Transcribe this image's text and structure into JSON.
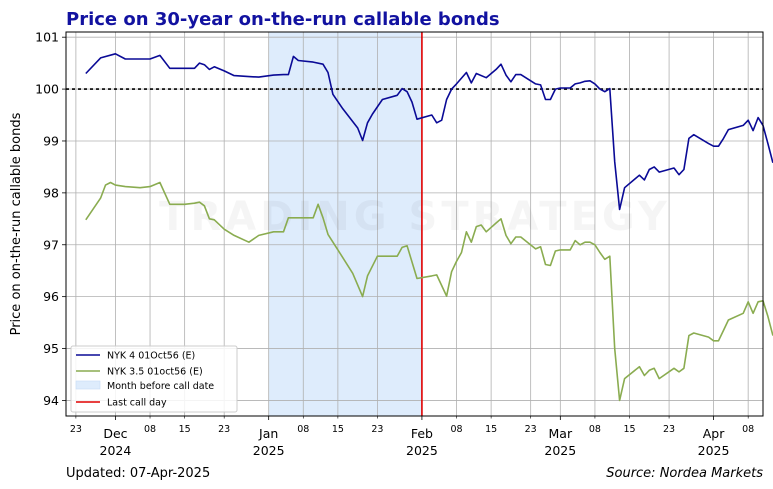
{
  "chart_data": {
    "type": "line",
    "title": "Price on 30-year on-the-run callable bonds",
    "ylabel": "Price on on-the-run callable bonds",
    "xlabel": "",
    "x_range": [
      "2024-11-21",
      "2025-04-11"
    ],
    "ylim": [
      93.7,
      101.1
    ],
    "grid": true,
    "legend_position": "lower-left",
    "y_ticks": [
      94,
      95,
      96,
      97,
      98,
      99,
      100,
      101
    ],
    "x_major_ticks": [
      {
        "date": "2024-12-01",
        "line1": "Dec",
        "line2": "2024"
      },
      {
        "date": "2025-01-01",
        "line1": "Jan",
        "line2": "2025"
      },
      {
        "date": "2025-02-01",
        "line1": "Feb",
        "line2": "2025"
      },
      {
        "date": "2025-03-01",
        "line1": "Mar",
        "line2": "2025"
      },
      {
        "date": "2025-04-01",
        "line1": "Apr",
        "line2": "2025"
      }
    ],
    "x_minor_ticks": [
      {
        "date": "2024-11-23",
        "label": "23"
      },
      {
        "date": "2024-12-08",
        "label": "08"
      },
      {
        "date": "2024-12-15",
        "label": "15"
      },
      {
        "date": "2024-12-23",
        "label": "23"
      },
      {
        "date": "2025-01-08",
        "label": "08"
      },
      {
        "date": "2025-01-15",
        "label": "15"
      },
      {
        "date": "2025-01-23",
        "label": "23"
      },
      {
        "date": "2025-02-08",
        "label": "08"
      },
      {
        "date": "2025-02-15",
        "label": "15"
      },
      {
        "date": "2025-02-23",
        "label": "23"
      },
      {
        "date": "2025-03-08",
        "label": "08"
      },
      {
        "date": "2025-03-15",
        "label": "15"
      },
      {
        "date": "2025-03-23",
        "label": "23"
      },
      {
        "date": "2025-04-08",
        "label": "08"
      }
    ],
    "reference_line": {
      "y": 100,
      "style": "dotted",
      "color": "#000000"
    },
    "shaded_region": {
      "x_start": "2025-01-01",
      "x_end": "2025-02-01",
      "label": "Month before call date",
      "color": "#deecfc"
    },
    "vertical_line": {
      "x": "2025-02-01",
      "label": "Last call day",
      "color": "#e00000"
    },
    "series": [
      {
        "name": "NYK 4 01Oct56 (E)",
        "color": "#0a0a96",
        "points": [
          [
            "2024-11-25",
            100.3
          ],
          [
            "2024-11-28",
            100.6
          ],
          [
            "2024-12-01",
            100.68
          ],
          [
            "2024-12-03",
            100.58
          ],
          [
            "2024-12-06",
            100.58
          ],
          [
            "2024-12-08",
            100.58
          ],
          [
            "2024-12-10",
            100.65
          ],
          [
            "2024-12-12",
            100.4
          ],
          [
            "2024-12-15",
            100.4
          ],
          [
            "2024-12-17",
            100.4
          ],
          [
            "2024-12-18",
            100.5
          ],
          [
            "2024-12-19",
            100.47
          ],
          [
            "2024-12-20",
            100.38
          ],
          [
            "2024-12-21",
            100.43
          ],
          [
            "2024-12-23",
            100.35
          ],
          [
            "2024-12-25",
            100.26
          ],
          [
            "2024-12-28",
            100.24
          ],
          [
            "2024-12-30",
            100.23
          ],
          [
            "2025-01-02",
            100.27
          ],
          [
            "2025-01-04",
            100.28
          ],
          [
            "2025-01-05",
            100.28
          ],
          [
            "2025-01-06",
            100.63
          ],
          [
            "2025-01-07",
            100.55
          ],
          [
            "2025-01-10",
            100.52
          ],
          [
            "2025-01-12",
            100.48
          ],
          [
            "2025-01-13",
            100.32
          ],
          [
            "2025-01-14",
            99.9
          ],
          [
            "2025-01-16",
            99.62
          ],
          [
            "2025-01-19",
            99.25
          ],
          [
            "2025-01-20",
            99.01
          ],
          [
            "2025-01-21",
            99.35
          ],
          [
            "2025-01-22",
            99.52
          ],
          [
            "2025-01-24",
            99.8
          ],
          [
            "2025-01-27",
            99.88
          ],
          [
            "2025-01-28",
            100.01
          ],
          [
            "2025-01-29",
            99.95
          ],
          [
            "2025-01-30",
            99.75
          ],
          [
            "2025-01-31",
            99.42
          ],
          [
            "2025-02-03",
            99.5
          ],
          [
            "2025-02-04",
            99.35
          ],
          [
            "2025-02-05",
            99.4
          ],
          [
            "2025-02-06",
            99.8
          ],
          [
            "2025-02-07",
            100.0
          ],
          [
            "2025-02-08",
            100.1
          ],
          [
            "2025-02-10",
            100.32
          ],
          [
            "2025-02-11",
            100.12
          ],
          [
            "2025-02-12",
            100.3
          ],
          [
            "2025-02-14",
            100.22
          ],
          [
            "2025-02-16",
            100.38
          ],
          [
            "2025-02-17",
            100.48
          ],
          [
            "2025-02-18",
            100.27
          ],
          [
            "2025-02-19",
            100.14
          ],
          [
            "2025-02-20",
            100.28
          ],
          [
            "2025-02-21",
            100.28
          ],
          [
            "2025-02-24",
            100.1
          ],
          [
            "2025-02-25",
            100.08
          ],
          [
            "2025-02-26",
            99.8
          ],
          [
            "2025-02-27",
            99.8
          ],
          [
            "2025-02-28",
            100.0
          ],
          [
            "2025-03-01",
            100.02
          ],
          [
            "2025-03-03",
            100.02
          ],
          [
            "2025-03-04",
            100.1
          ],
          [
            "2025-03-05",
            100.12
          ],
          [
            "2025-03-06",
            100.15
          ],
          [
            "2025-03-07",
            100.16
          ],
          [
            "2025-03-08",
            100.1
          ],
          [
            "2025-03-09",
            100.0
          ],
          [
            "2025-03-10",
            99.95
          ],
          [
            "2025-03-11",
            100.01
          ],
          [
            "2025-03-12",
            98.6
          ],
          [
            "2025-03-13",
            97.68
          ],
          [
            "2025-03-14",
            98.1
          ],
          [
            "2025-03-17",
            98.34
          ],
          [
            "2025-03-18",
            98.25
          ],
          [
            "2025-03-19",
            98.45
          ],
          [
            "2025-03-20",
            98.5
          ],
          [
            "2025-03-21",
            98.4
          ],
          [
            "2025-03-24",
            98.48
          ],
          [
            "2025-03-25",
            98.35
          ],
          [
            "2025-03-26",
            98.45
          ],
          [
            "2025-03-27",
            99.05
          ],
          [
            "2025-03-28",
            99.12
          ],
          [
            "2025-03-31",
            98.95
          ],
          [
            "2025-04-01",
            98.9
          ],
          [
            "2025-04-02",
            98.9
          ],
          [
            "2025-04-03",
            99.05
          ],
          [
            "2025-04-04",
            99.22
          ],
          [
            "2025-04-07",
            99.3
          ],
          [
            "2025-04-08",
            99.4
          ],
          [
            "2025-04-09",
            99.2
          ],
          [
            "2025-04-10",
            99.45
          ],
          [
            "2025-04-11",
            99.3
          ],
          [
            "2025-04-12",
            98.95
          ],
          [
            "2025-04-13",
            98.58
          ]
        ]
      },
      {
        "name": "NYK 3.5 01oct56 (E)",
        "color": "#8aac50",
        "points": [
          [
            "2024-11-25",
            97.48
          ],
          [
            "2024-11-28",
            97.9
          ],
          [
            "2024-11-29",
            98.15
          ],
          [
            "2024-11-30",
            98.2
          ],
          [
            "2024-12-01",
            98.15
          ],
          [
            "2024-12-03",
            98.12
          ],
          [
            "2024-12-06",
            98.1
          ],
          [
            "2024-12-08",
            98.12
          ],
          [
            "2024-12-10",
            98.2
          ],
          [
            "2024-12-12",
            97.78
          ],
          [
            "2024-12-15",
            97.78
          ],
          [
            "2024-12-17",
            97.8
          ],
          [
            "2024-12-18",
            97.82
          ],
          [
            "2024-12-19",
            97.75
          ],
          [
            "2024-12-20",
            97.5
          ],
          [
            "2024-12-21",
            97.48
          ],
          [
            "2024-12-23",
            97.3
          ],
          [
            "2024-12-25",
            97.18
          ],
          [
            "2024-12-28",
            97.05
          ],
          [
            "2024-12-30",
            97.18
          ],
          [
            "2025-01-02",
            97.25
          ],
          [
            "2025-01-04",
            97.25
          ],
          [
            "2025-01-05",
            97.52
          ],
          [
            "2025-01-06",
            97.52
          ],
          [
            "2025-01-07",
            97.52
          ],
          [
            "2025-01-10",
            97.52
          ],
          [
            "2025-01-11",
            97.78
          ],
          [
            "2025-01-12",
            97.52
          ],
          [
            "2025-01-13",
            97.2
          ],
          [
            "2025-01-15",
            96.9
          ],
          [
            "2025-01-18",
            96.45
          ],
          [
            "2025-01-20",
            96.0
          ],
          [
            "2025-01-21",
            96.4
          ],
          [
            "2025-01-23",
            96.78
          ],
          [
            "2025-01-25",
            96.78
          ],
          [
            "2025-01-27",
            96.78
          ],
          [
            "2025-01-28",
            96.95
          ],
          [
            "2025-01-29",
            96.98
          ],
          [
            "2025-01-31",
            96.35
          ],
          [
            "2025-02-03",
            96.4
          ],
          [
            "2025-02-04",
            96.42
          ],
          [
            "2025-02-06",
            96.01
          ],
          [
            "2025-02-07",
            96.48
          ],
          [
            "2025-02-08",
            96.68
          ],
          [
            "2025-02-09",
            96.85
          ],
          [
            "2025-02-10",
            97.25
          ],
          [
            "2025-02-11",
            97.05
          ],
          [
            "2025-02-12",
            97.35
          ],
          [
            "2025-02-13",
            97.38
          ],
          [
            "2025-02-14",
            97.25
          ],
          [
            "2025-02-16",
            97.42
          ],
          [
            "2025-02-17",
            97.5
          ],
          [
            "2025-02-18",
            97.18
          ],
          [
            "2025-02-19",
            97.02
          ],
          [
            "2025-02-20",
            97.15
          ],
          [
            "2025-02-21",
            97.15
          ],
          [
            "2025-02-24",
            96.92
          ],
          [
            "2025-02-25",
            96.96
          ],
          [
            "2025-02-26",
            96.62
          ],
          [
            "2025-02-27",
            96.6
          ],
          [
            "2025-02-28",
            96.88
          ],
          [
            "2025-03-01",
            96.9
          ],
          [
            "2025-03-03",
            96.9
          ],
          [
            "2025-03-04",
            97.08
          ],
          [
            "2025-03-05",
            97.0
          ],
          [
            "2025-03-06",
            97.05
          ],
          [
            "2025-03-07",
            97.05
          ],
          [
            "2025-03-08",
            97.0
          ],
          [
            "2025-03-09",
            96.85
          ],
          [
            "2025-03-10",
            96.72
          ],
          [
            "2025-03-11",
            96.78
          ],
          [
            "2025-03-12",
            95.0
          ],
          [
            "2025-03-13",
            94.0
          ],
          [
            "2025-03-14",
            94.42
          ],
          [
            "2025-03-17",
            94.65
          ],
          [
            "2025-03-18",
            94.48
          ],
          [
            "2025-03-19",
            94.58
          ],
          [
            "2025-03-20",
            94.62
          ],
          [
            "2025-03-21",
            94.42
          ],
          [
            "2025-03-24",
            94.62
          ],
          [
            "2025-03-25",
            94.55
          ],
          [
            "2025-03-26",
            94.62
          ],
          [
            "2025-03-27",
            95.25
          ],
          [
            "2025-03-28",
            95.3
          ],
          [
            "2025-03-31",
            95.22
          ],
          [
            "2025-04-01",
            95.15
          ],
          [
            "2025-04-02",
            95.15
          ],
          [
            "2025-04-03",
            95.35
          ],
          [
            "2025-04-04",
            95.55
          ],
          [
            "2025-04-07",
            95.68
          ],
          [
            "2025-04-08",
            95.9
          ],
          [
            "2025-04-09",
            95.68
          ],
          [
            "2025-04-10",
            95.9
          ],
          [
            "2025-04-11",
            95.92
          ],
          [
            "2025-04-12",
            95.62
          ],
          [
            "2025-04-13",
            95.25
          ]
        ]
      }
    ],
    "legend": [
      {
        "label": "NYK 4 01Oct56 (E)",
        "kind": "line",
        "color": "#0a0a96"
      },
      {
        "label": "NYK 3.5 01oct56 (E)",
        "kind": "line",
        "color": "#8aac50"
      },
      {
        "label": "Month before call date",
        "kind": "patch",
        "color": "#deecfc"
      },
      {
        "label": "Last call day",
        "kind": "line",
        "color": "#e00000"
      }
    ]
  },
  "footer": {
    "updated": "Updated: 07-Apr-2025",
    "source": "Source: Nordea Markets"
  }
}
